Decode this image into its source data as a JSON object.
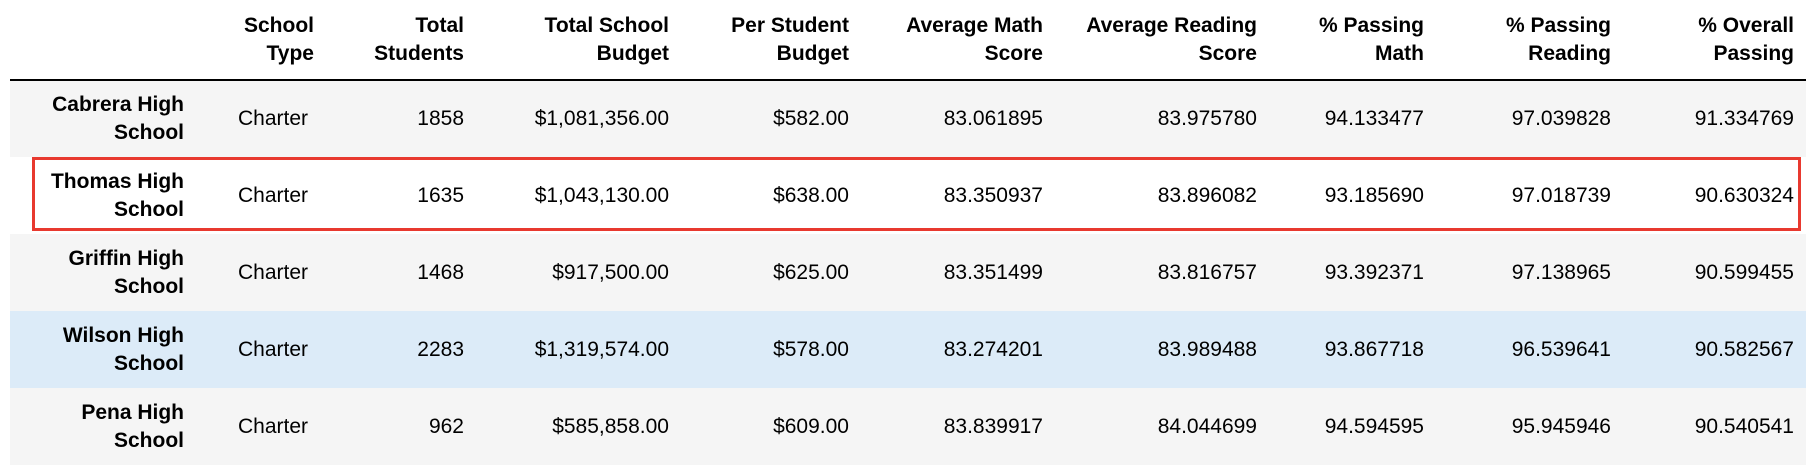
{
  "table": {
    "headers": {
      "index": "",
      "school_type": [
        "School",
        "Type"
      ],
      "total_students": [
        "Total",
        "Students"
      ],
      "total_budget": [
        "Total School",
        "Budget"
      ],
      "per_student_budget": [
        "Per Student",
        "Budget"
      ],
      "avg_math": [
        "Average Math",
        "Score"
      ],
      "avg_reading": [
        "Average Reading",
        "Score"
      ],
      "pct_math": [
        "% Passing",
        "Math"
      ],
      "pct_reading": [
        "% Passing",
        "Reading"
      ],
      "pct_overall": [
        "% Overall",
        "Passing"
      ]
    },
    "rows": [
      {
        "name": [
          "Cabrera High",
          "School"
        ],
        "school_type": "Charter",
        "total_students": "1858",
        "total_budget": "$1,081,356.00",
        "per_student_budget": "$582.00",
        "avg_math": "83.061895",
        "avg_reading": "83.975780",
        "pct_math": "94.133477",
        "pct_reading": "97.039828",
        "pct_overall": "91.334769"
      },
      {
        "name": [
          "Thomas High",
          "School"
        ],
        "school_type": "Charter",
        "total_students": "1635",
        "total_budget": "$1,043,130.00",
        "per_student_budget": "$638.00",
        "avg_math": "83.350937",
        "avg_reading": "83.896082",
        "pct_math": "93.185690",
        "pct_reading": "97.018739",
        "pct_overall": "90.630324"
      },
      {
        "name": [
          "Griffin High",
          "School"
        ],
        "school_type": "Charter",
        "total_students": "1468",
        "total_budget": "$917,500.00",
        "per_student_budget": "$625.00",
        "avg_math": "83.351499",
        "avg_reading": "83.816757",
        "pct_math": "93.392371",
        "pct_reading": "97.138965",
        "pct_overall": "90.599455"
      },
      {
        "name": [
          "Wilson High",
          "School"
        ],
        "school_type": "Charter",
        "total_students": "2283",
        "total_budget": "$1,319,574.00",
        "per_student_budget": "$578.00",
        "avg_math": "83.274201",
        "avg_reading": "83.989488",
        "pct_math": "93.867718",
        "pct_reading": "96.539641",
        "pct_overall": "90.582567"
      },
      {
        "name": [
          "Pena High",
          "School"
        ],
        "school_type": "Charter",
        "total_students": "962",
        "total_budget": "$585,858.00",
        "per_student_budget": "$609.00",
        "avg_math": "83.839917",
        "avg_reading": "84.044699",
        "pct_math": "94.594595",
        "pct_reading": "95.945946",
        "pct_overall": "90.540541"
      }
    ],
    "hovered_row": "Wilson High School",
    "highlighted_row": "Thomas High School"
  },
  "colors": {
    "highlight_border": "#e8392f",
    "row_stripe": "#f5f5f5",
    "row_hover": "#dcebf8",
    "header_rule": "#000000"
  }
}
